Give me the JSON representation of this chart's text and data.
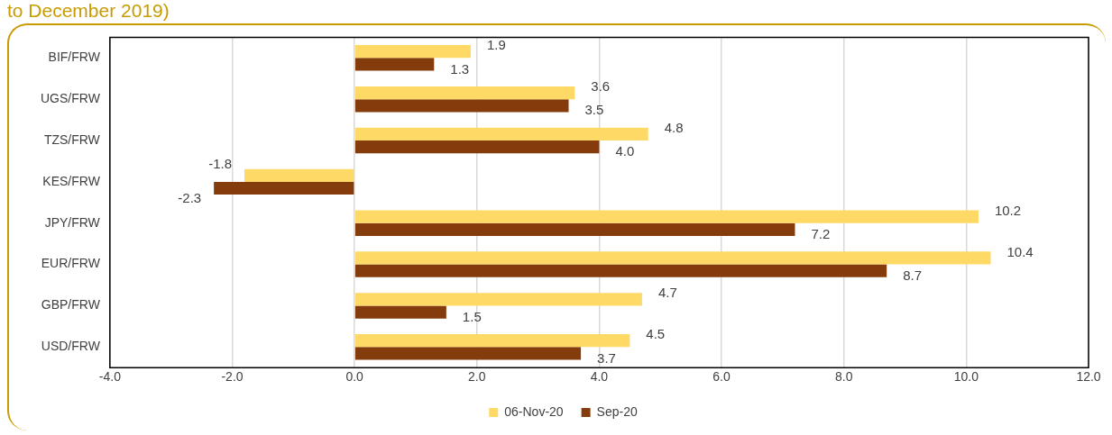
{
  "chart_data": {
    "type": "bar",
    "orientation": "horizontal",
    "title": "to December 2019)",
    "categories": [
      "BIF/FRW",
      "UGS/FRW",
      "TZS/FRW",
      "KES/FRW",
      "JPY/FRW",
      "EUR/FRW",
      "GBP/FRW",
      "USD/FRW"
    ],
    "series": [
      {
        "name": "06-Nov-20",
        "color": "#ffd966",
        "values": [
          1.9,
          3.6,
          4.8,
          -1.8,
          10.2,
          10.4,
          4.7,
          4.5
        ],
        "value_labels": [
          "1.9",
          "3.6",
          "4.8",
          "-1.8",
          "10.2",
          "10.4",
          "4.7",
          "4.5"
        ]
      },
      {
        "name": "Sep-20",
        "color": "#843c0c",
        "values": [
          1.3,
          3.5,
          4.0,
          -2.3,
          7.2,
          8.7,
          1.5,
          3.7
        ],
        "value_labels": [
          "1.3",
          "3.5",
          "4.0",
          "-2.3",
          "7.2",
          "8.7",
          "1.5",
          "3.7"
        ]
      }
    ],
    "xlim": [
      -4,
      12
    ],
    "xticks": [
      {
        "value": -4,
        "label": "-4.0"
      },
      {
        "value": -2,
        "label": "-2.0"
      },
      {
        "value": 0,
        "label": "0.0"
      },
      {
        "value": 2,
        "label": "2.0"
      },
      {
        "value": 4,
        "label": "4.0"
      },
      {
        "value": 6,
        "label": "6.0"
      },
      {
        "value": 8,
        "label": "8.0"
      },
      {
        "value": 10,
        "label": "10.0"
      },
      {
        "value": 12,
        "label": "12.0"
      }
    ],
    "grid": "x",
    "legend": "bottom"
  }
}
